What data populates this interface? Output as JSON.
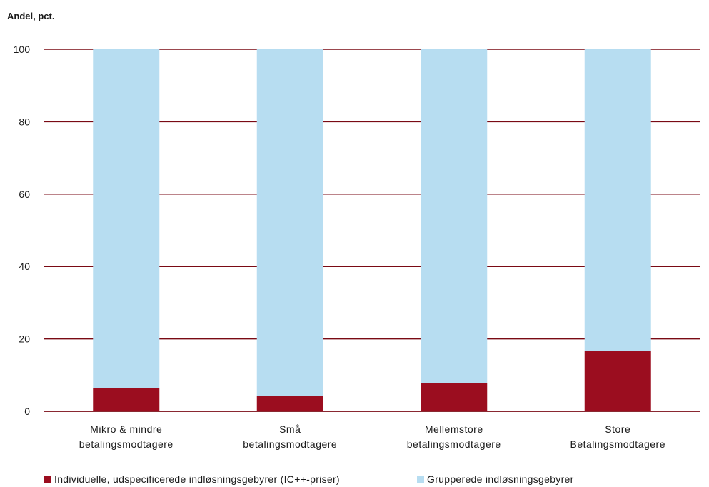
{
  "chart_data": {
    "type": "bar",
    "stacked": true,
    "ylabel": "Andel, pct.",
    "ylim": [
      0,
      100
    ],
    "yticks": [
      0,
      20,
      40,
      60,
      80,
      100
    ],
    "grid": true,
    "legend_position": "bottom",
    "categories": [
      [
        "Mikro & mindre",
        "betalingsmodtagere"
      ],
      [
        "Små",
        "betalingsmodtagere"
      ],
      [
        "Mellemstore",
        "betalingsmodtagere"
      ],
      [
        "Store",
        "Betalingsmodtagere"
      ]
    ],
    "series": [
      {
        "name": "Individuelle, udspecificerede indløsningsgebyrer (IC++-priser)",
        "color": "#9b0d1f",
        "values": [
          6.5,
          4.2,
          7.7,
          16.7
        ]
      },
      {
        "name": "Grupperede indløsningsgebyrer",
        "color": "#b7ddf1",
        "values": [
          93.5,
          95.8,
          92.3,
          83.3
        ]
      }
    ],
    "gridline_color": "#7a0a14"
  }
}
